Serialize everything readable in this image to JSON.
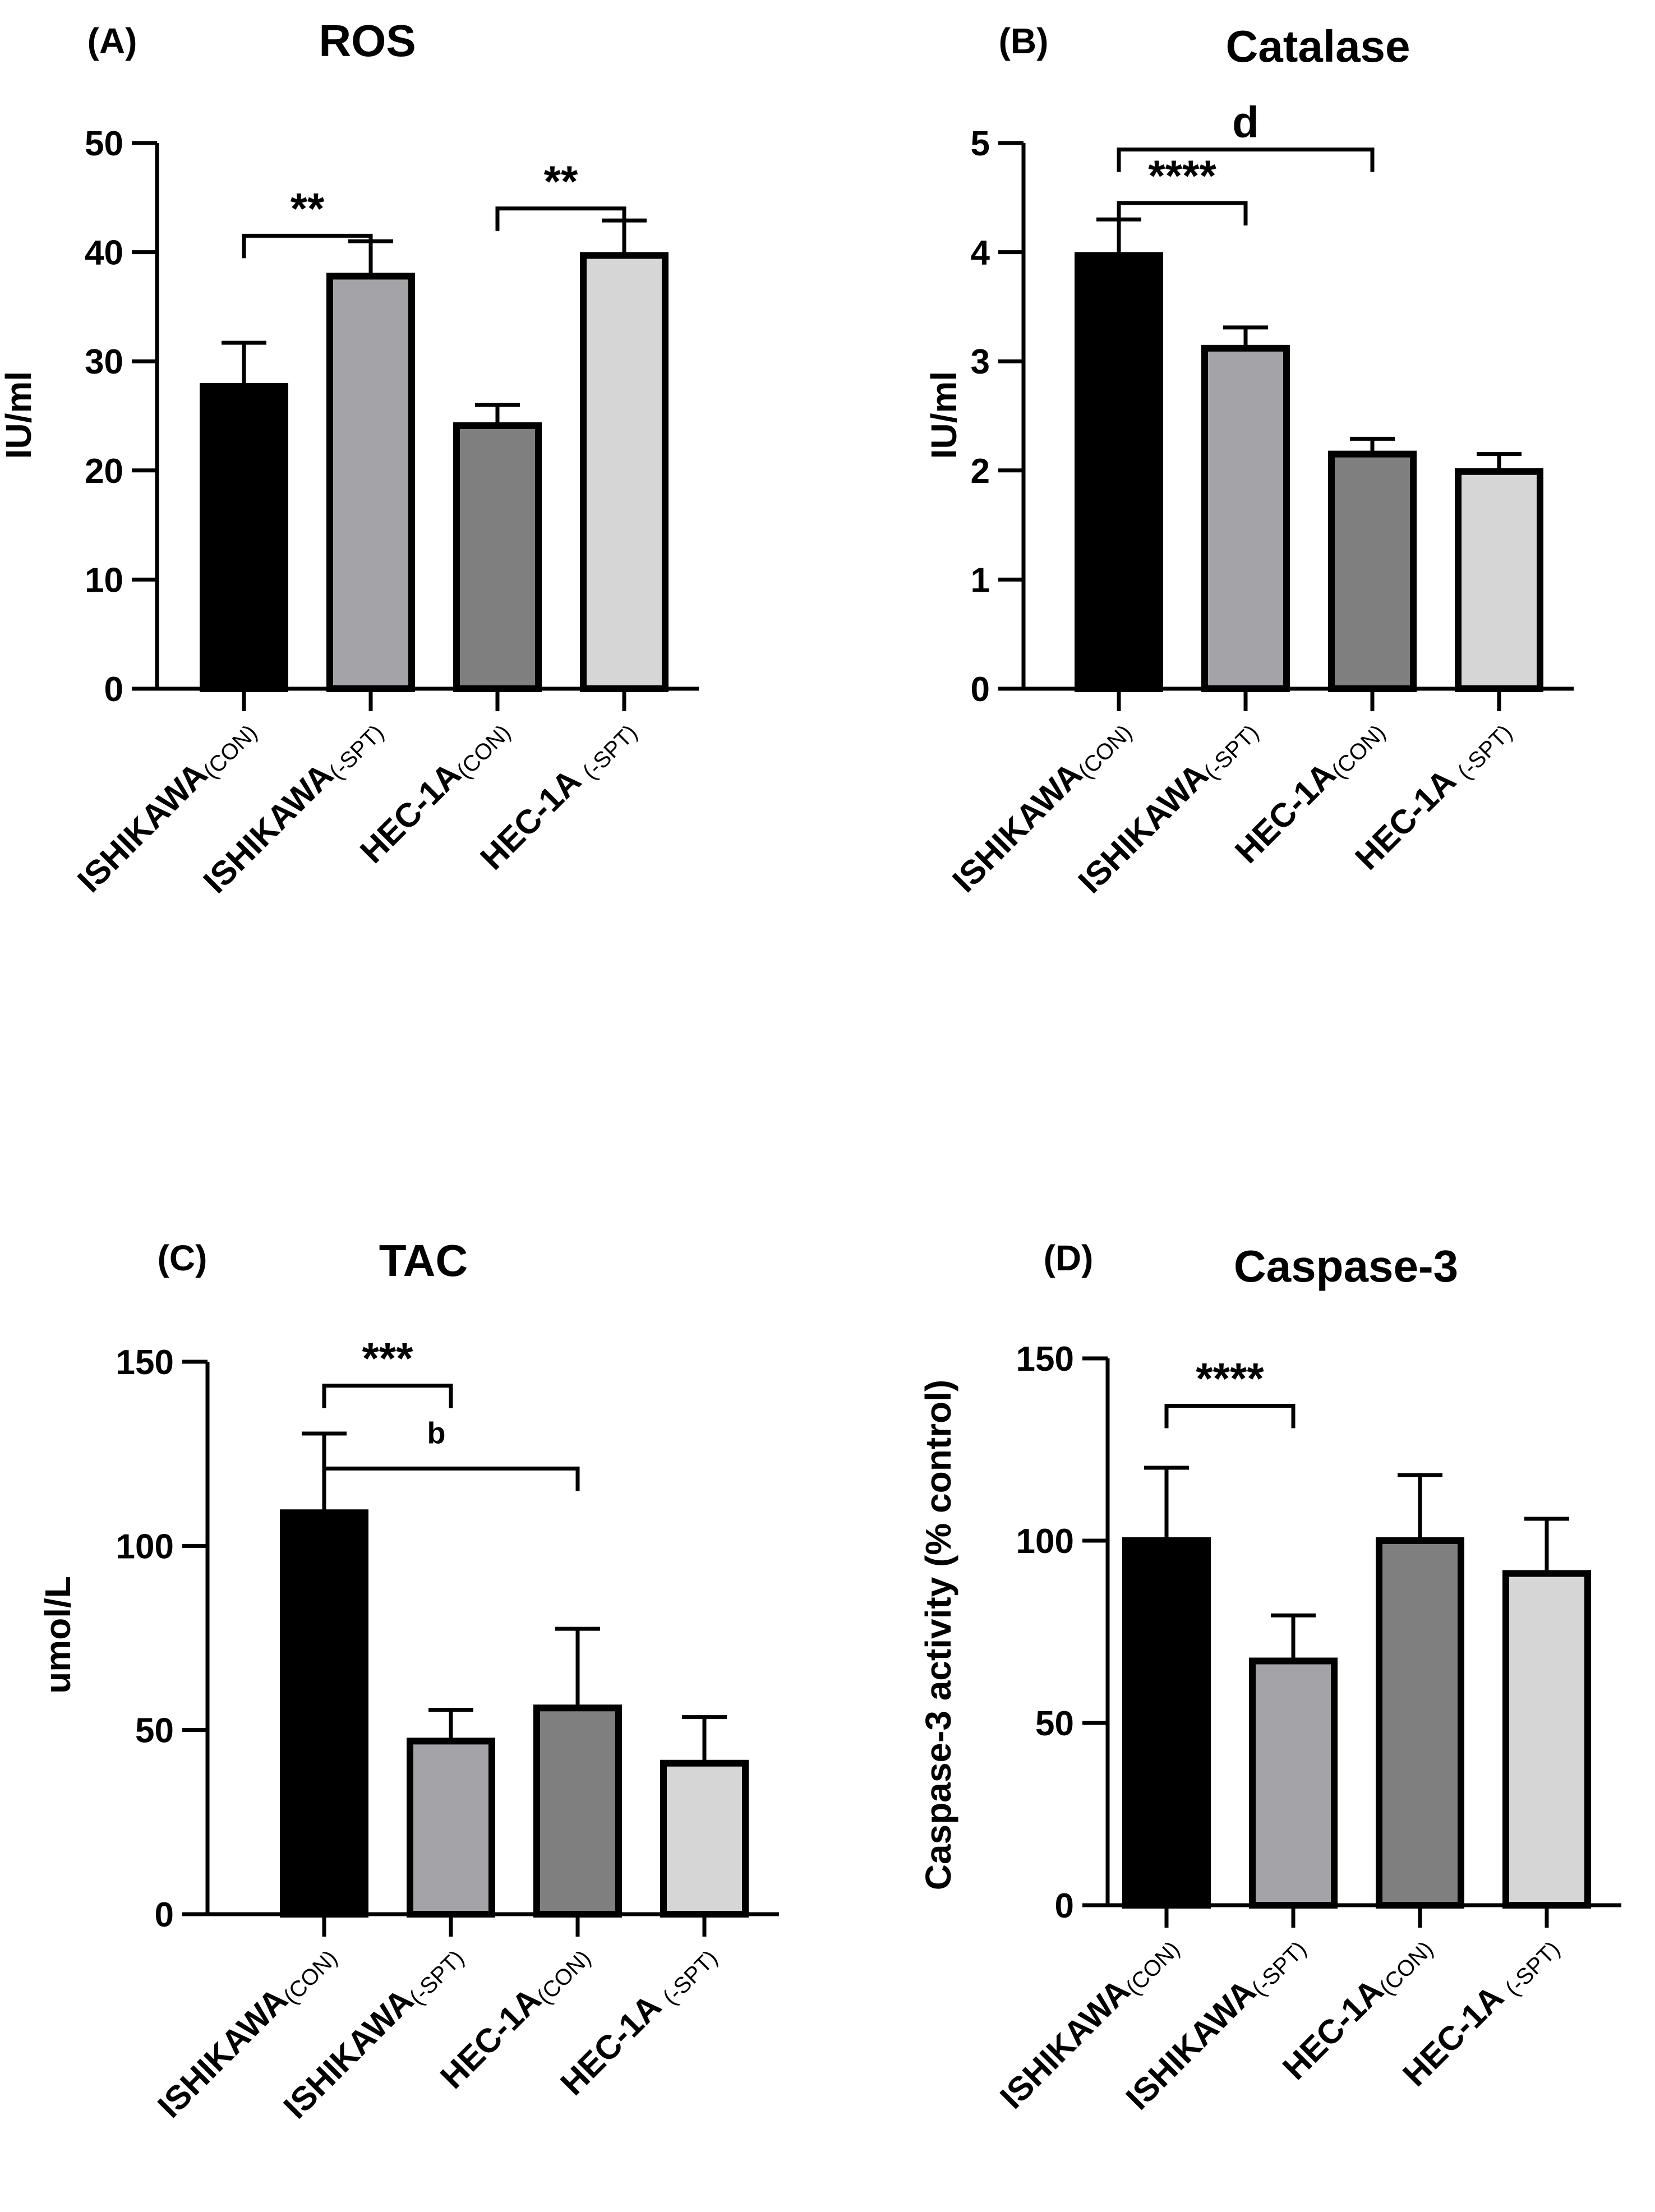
{
  "chart_data": [
    {
      "type": "bar",
      "panel": "(A)",
      "title": "ROS",
      "ylabel": "IU/ml",
      "xlabel": "",
      "ylim": [
        0,
        50
      ],
      "yticks": [
        0,
        10,
        20,
        30,
        40,
        50
      ],
      "categories": [
        {
          "main": "ISHIKAWA",
          "sub": "(CON)"
        },
        {
          "main": "ISHIKAWA",
          "sub": "(-SPT)"
        },
        {
          "main": "HEC-1A",
          "sub": "(CON)"
        },
        {
          "main": "HEC-1A ",
          "sub": "(-SPT)"
        }
      ],
      "values": [
        27.7,
        37.8,
        24.1,
        39.7
      ],
      "errors": [
        4.0,
        3.2,
        1.9,
        3.2
      ],
      "colors": [
        "#000000",
        "#a3a3a8",
        "#7f7f7f",
        "#d6d6d6"
      ],
      "significance": [
        {
          "from": 0,
          "to": 1,
          "label": "**",
          "y": 41.5
        },
        {
          "from": 2,
          "to": 3,
          "label": "**",
          "y": 44.0
        }
      ]
    },
    {
      "type": "bar",
      "panel": "(B)",
      "title": "Catalase",
      "ylabel": "IU/ml",
      "xlabel": "",
      "ylim": [
        0,
        5
      ],
      "yticks": [
        0,
        1,
        2,
        3,
        4,
        5
      ],
      "categories": [
        {
          "main": "ISHIKAWA",
          "sub": "(CON)"
        },
        {
          "main": "ISHIKAWA",
          "sub": "(-SPT)"
        },
        {
          "main": "HEC-1A",
          "sub": "(CON)"
        },
        {
          "main": "HEC-1A ",
          "sub": "(-SPT)"
        }
      ],
      "values": [
        3.97,
        3.12,
        2.15,
        1.99
      ],
      "errors": [
        0.33,
        0.19,
        0.14,
        0.16
      ],
      "colors": [
        "#000000",
        "#a3a3a8",
        "#7f7f7f",
        "#d6d6d6"
      ],
      "significance": [
        {
          "from": 0,
          "to": 1,
          "label": "****",
          "y": 4.45
        },
        {
          "from": 0,
          "to": 2,
          "label": "d",
          "y": 4.94
        }
      ]
    },
    {
      "type": "bar",
      "panel": "(C)",
      "title": "TAC",
      "ylabel": "umol/L",
      "xlabel": "",
      "ylim": [
        0,
        150
      ],
      "yticks": [
        0,
        50,
        100,
        150
      ],
      "categories": [
        {
          "main": "ISHIKAWA",
          "sub": "(CON)"
        },
        {
          "main": "ISHIKAWA",
          "sub": "(-SPT)"
        },
        {
          "main": "HEC-1A",
          "sub": "(CON)"
        },
        {
          "main": "HEC-1A ",
          "sub": "(-SPT)"
        }
      ],
      "values": [
        109,
        47,
        56,
        41
      ],
      "errors": [
        21.5,
        8.5,
        21.5,
        12.5
      ],
      "colors": [
        "#000000",
        "#a3a3a8",
        "#7f7f7f",
        "#d6d6d6"
      ],
      "significance": [
        {
          "from": 0,
          "to": 1,
          "label": "***",
          "y": 143.5
        },
        {
          "from": 0,
          "to": 2,
          "label": "b",
          "y": 121.0
        }
      ]
    },
    {
      "type": "bar",
      "panel": "(D)",
      "title": "Caspase-3",
      "ylabel": "Caspase-3 activity (% control)",
      "xlabel": "",
      "ylim": [
        0,
        150
      ],
      "yticks": [
        0,
        50,
        100,
        150
      ],
      "categories": [
        {
          "main": "ISHIKAWA",
          "sub": "(CON)"
        },
        {
          "main": "ISHIKAWA",
          "sub": "(-SPT)"
        },
        {
          "main": "HEC-1A",
          "sub": "(CON)"
        },
        {
          "main": "HEC-1A ",
          "sub": "(-SPT)"
        }
      ],
      "values": [
        100,
        67,
        100,
        91
      ],
      "errors": [
        20,
        12.5,
        18,
        15
      ],
      "colors": [
        "#000000",
        "#a3a3a8",
        "#7f7f7f",
        "#d6d6d6"
      ],
      "significance": [
        {
          "from": 0,
          "to": 1,
          "label": "****",
          "y": 137.0
        }
      ]
    }
  ]
}
